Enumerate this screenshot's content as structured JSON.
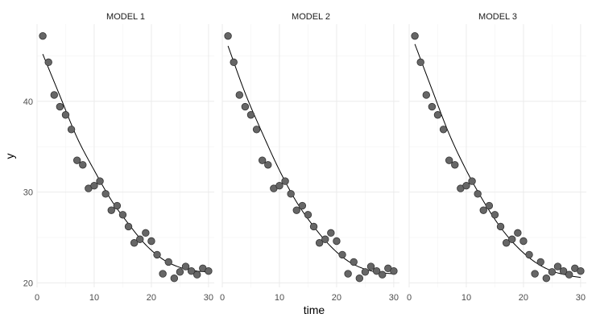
{
  "chart_data": {
    "type": "scatter",
    "xlabel": "time",
    "ylabel": "y",
    "xlim": [
      0,
      31
    ],
    "ylim": [
      19.5,
      48.5
    ],
    "x_ticks": [
      0,
      10,
      20,
      30
    ],
    "y_ticks": [
      20,
      30,
      40
    ],
    "grid": true,
    "point_color": "#666666",
    "point_edge_color": "#333333",
    "line_color": "#000000",
    "points": {
      "x": [
        1,
        2,
        3,
        4,
        5,
        6,
        7,
        8,
        9,
        10,
        11,
        12,
        13,
        14,
        15,
        16,
        17,
        18,
        19,
        20,
        21,
        22,
        23,
        24,
        25,
        26,
        27,
        28,
        29,
        30
      ],
      "y": [
        47.2,
        44.3,
        40.7,
        39.4,
        38.5,
        36.9,
        33.5,
        33.0,
        30.4,
        30.7,
        31.2,
        29.8,
        28.0,
        28.5,
        27.5,
        26.2,
        24.4,
        24.8,
        25.5,
        24.6,
        23.1,
        21.0,
        22.3,
        20.5,
        21.2,
        21.8,
        21.3,
        20.9,
        21.6,
        21.3
      ]
    },
    "panels": [
      {
        "strip": "MODEL 1",
        "fit": {
          "x": [
            1,
            4,
            7,
            10,
            13,
            16,
            19,
            22,
            25,
            28,
            30
          ],
          "y": [
            45.2,
            40.6,
            36.0,
            32.4,
            29.1,
            26.5,
            24.2,
            22.6,
            21.7,
            21.3,
            21.2
          ]
        }
      },
      {
        "strip": "MODEL 2",
        "fit": {
          "x": [
            1,
            4,
            7,
            10,
            13,
            16,
            19,
            22,
            25,
            28,
            30
          ],
          "y": [
            46.1,
            40.9,
            36.5,
            32.4,
            28.9,
            26.2,
            24.0,
            22.4,
            21.5,
            21.1,
            21.0
          ]
        }
      },
      {
        "strip": "MODEL 3",
        "fit": {
          "x": [
            1,
            4,
            7,
            10,
            13,
            16,
            19,
            22,
            25,
            28,
            30
          ],
          "y": [
            46.3,
            41.3,
            36.4,
            32.4,
            29.0,
            26.1,
            23.9,
            22.3,
            21.3,
            20.8,
            20.6
          ]
        }
      }
    ]
  }
}
